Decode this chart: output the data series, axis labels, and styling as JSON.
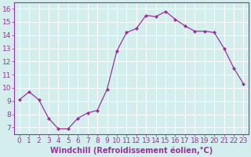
{
  "x": [
    0,
    1,
    2,
    3,
    4,
    5,
    6,
    7,
    8,
    9,
    10,
    11,
    12,
    13,
    14,
    15,
    16,
    17,
    18,
    19,
    20,
    21,
    22,
    23
  ],
  "y": [
    9.1,
    9.7,
    9.1,
    7.7,
    6.9,
    6.9,
    7.7,
    8.1,
    8.3,
    9.9,
    12.8,
    14.2,
    14.5,
    15.5,
    15.4,
    15.8,
    15.2,
    14.7,
    14.3,
    14.3,
    14.2,
    13.0,
    11.5,
    10.3
  ],
  "line_color": "#993399",
  "marker": "D",
  "marker_size": 2.0,
  "bg_color": "#d4eeed",
  "grid_color": "#ffffff",
  "xlabel": "Windchill (Refroidissement éolien,°C)",
  "xlim": [
    -0.5,
    23.5
  ],
  "ylim": [
    6.5,
    16.5
  ],
  "yticks": [
    7,
    8,
    9,
    10,
    11,
    12,
    13,
    14,
    15,
    16
  ],
  "xticks": [
    0,
    1,
    2,
    3,
    4,
    5,
    6,
    7,
    8,
    9,
    10,
    11,
    12,
    13,
    14,
    15,
    16,
    17,
    18,
    19,
    20,
    21,
    22,
    23
  ],
  "xlabel_fontsize": 7.0,
  "tick_fontsize": 6.5,
  "label_color": "#993399",
  "spine_color": "#993399",
  "linewidth": 0.9
}
